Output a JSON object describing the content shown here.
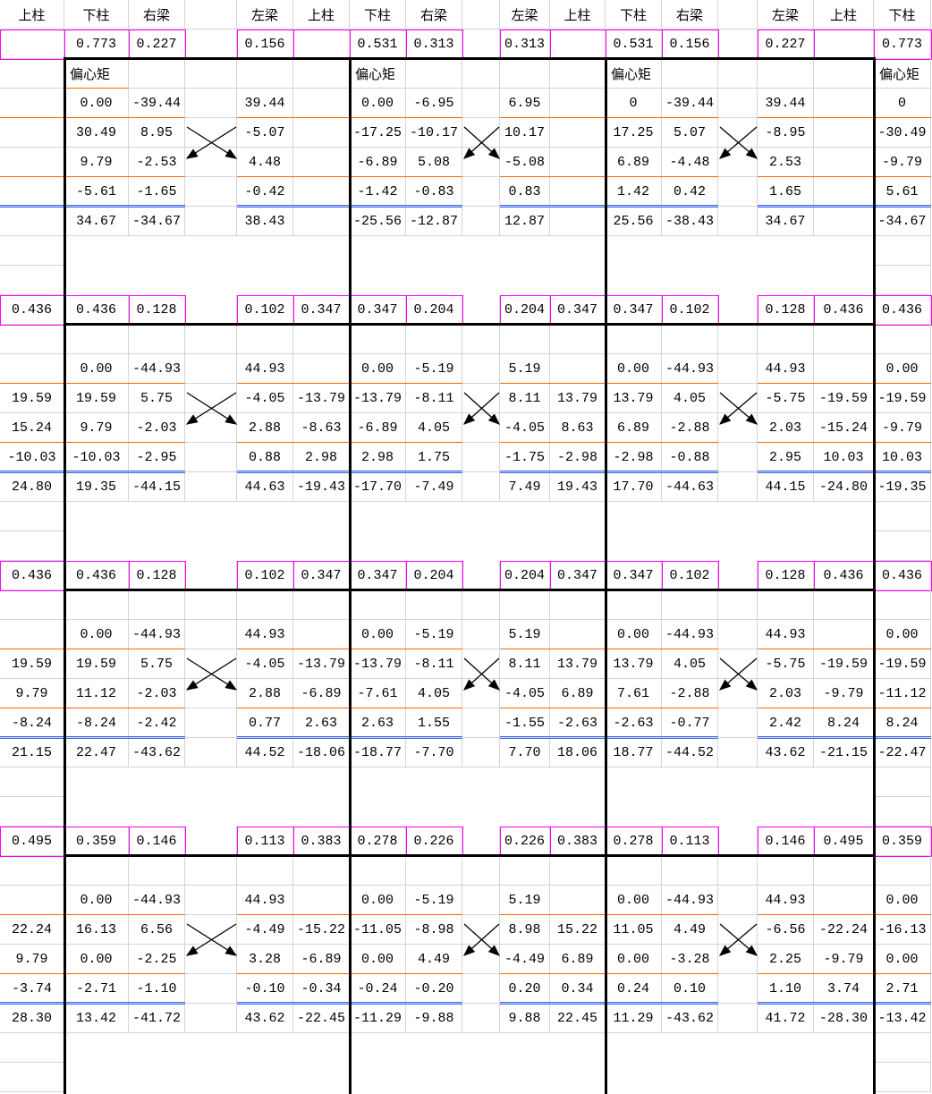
{
  "sheet": {
    "label_eccentric": "偏心矩",
    "colors": {
      "ratio_border": "#ff00ff",
      "separator": "#ff6600",
      "sum_line": "#3366ff",
      "frame": "#000000"
    },
    "rows": [
      [
        "上柱",
        "下柱",
        "右梁",
        "",
        "左梁",
        "上柱",
        "下柱",
        "右梁",
        "",
        "左梁",
        "上柱",
        "下柱",
        "右梁",
        "",
        "左梁",
        "上柱",
        "下柱"
      ],
      [
        "",
        "0.773",
        "0.227",
        "",
        "0.156",
        "",
        "0.531",
        "0.313",
        "",
        "0.313",
        "",
        "0.531",
        "0.156",
        "",
        "0.227",
        "",
        "0.773"
      ],
      [
        "",
        "偏心矩",
        "",
        "",
        "",
        "",
        "偏心矩",
        "",
        "",
        "",
        "",
        "偏心矩",
        "",
        "",
        "",
        "",
        "偏心矩"
      ],
      [
        "",
        "0.00",
        "-39.44",
        "",
        "39.44",
        "",
        "0.00",
        "-6.95",
        "",
        "6.95",
        "",
        "0",
        "-39.44",
        "",
        "39.44",
        "",
        "0"
      ],
      [
        "",
        "30.49",
        "8.95",
        "",
        "-5.07",
        "",
        "-17.25",
        "-10.17",
        "",
        "10.17",
        "",
        "17.25",
        "5.07",
        "",
        "-8.95",
        "",
        "-30.49"
      ],
      [
        "",
        "9.79",
        "-2.53",
        "",
        "4.48",
        "",
        "-6.89",
        "5.08",
        "",
        "-5.08",
        "",
        "6.89",
        "-4.48",
        "",
        "2.53",
        "",
        "-9.79"
      ],
      [
        "",
        "-5.61",
        "-1.65",
        "",
        "-0.42",
        "",
        "-1.42",
        "-0.83",
        "",
        "0.83",
        "",
        "1.42",
        "0.42",
        "",
        "1.65",
        "",
        "5.61"
      ],
      [
        "",
        "34.67",
        "-34.67",
        "",
        "38.43",
        "",
        "-25.56",
        "-12.87",
        "",
        "12.87",
        "",
        "25.56",
        "-38.43",
        "",
        "34.67",
        "",
        "-34.67"
      ],
      [],
      [],
      [
        "0.436",
        "0.436",
        "0.128",
        "",
        "0.102",
        "0.347",
        "0.347",
        "0.204",
        "",
        "0.204",
        "0.347",
        "0.347",
        "0.102",
        "",
        "0.128",
        "0.436",
        "0.436"
      ],
      [],
      [
        "",
        "0.00",
        "-44.93",
        "",
        "44.93",
        "",
        "0.00",
        "-5.19",
        "",
        "5.19",
        "",
        "0.00",
        "-44.93",
        "",
        "44.93",
        "",
        "0.00"
      ],
      [
        "19.59",
        "19.59",
        "5.75",
        "",
        "-4.05",
        "-13.79",
        "-13.79",
        "-8.11",
        "",
        "8.11",
        "13.79",
        "13.79",
        "4.05",
        "",
        "-5.75",
        "-19.59",
        "-19.59"
      ],
      [
        "15.24",
        "9.79",
        "-2.03",
        "",
        "2.88",
        "-8.63",
        "-6.89",
        "4.05",
        "",
        "-4.05",
        "8.63",
        "6.89",
        "-2.88",
        "",
        "2.03",
        "-15.24",
        "-9.79"
      ],
      [
        "-10.03",
        "-10.03",
        "-2.95",
        "",
        "0.88",
        "2.98",
        "2.98",
        "1.75",
        "",
        "-1.75",
        "-2.98",
        "-2.98",
        "-0.88",
        "",
        "2.95",
        "10.03",
        "10.03"
      ],
      [
        "24.80",
        "19.35",
        "-44.15",
        "",
        "44.63",
        "-19.43",
        "-17.70",
        "-7.49",
        "",
        "7.49",
        "19.43",
        "17.70",
        "-44.63",
        "",
        "44.15",
        "-24.80",
        "-19.35"
      ],
      [],
      [],
      [
        "0.436",
        "0.436",
        "0.128",
        "",
        "0.102",
        "0.347",
        "0.347",
        "0.204",
        "",
        "0.204",
        "0.347",
        "0.347",
        "0.102",
        "",
        "0.128",
        "0.436",
        "0.436"
      ],
      [],
      [
        "",
        "0.00",
        "-44.93",
        "",
        "44.93",
        "",
        "0.00",
        "-5.19",
        "",
        "5.19",
        "",
        "0.00",
        "-44.93",
        "",
        "44.93",
        "",
        "0.00"
      ],
      [
        "19.59",
        "19.59",
        "5.75",
        "",
        "-4.05",
        "-13.79",
        "-13.79",
        "-8.11",
        "",
        "8.11",
        "13.79",
        "13.79",
        "4.05",
        "",
        "-5.75",
        "-19.59",
        "-19.59"
      ],
      [
        "9.79",
        "11.12",
        "-2.03",
        "",
        "2.88",
        "-6.89",
        "-7.61",
        "4.05",
        "",
        "-4.05",
        "6.89",
        "7.61",
        "-2.88",
        "",
        "2.03",
        "-9.79",
        "-11.12"
      ],
      [
        "-8.24",
        "-8.24",
        "-2.42",
        "",
        "0.77",
        "2.63",
        "2.63",
        "1.55",
        "",
        "-1.55",
        "-2.63",
        "-2.63",
        "-0.77",
        "",
        "2.42",
        "8.24",
        "8.24"
      ],
      [
        "21.15",
        "22.47",
        "-43.62",
        "",
        "44.52",
        "-18.06",
        "-18.77",
        "-7.70",
        "",
        "7.70",
        "18.06",
        "18.77",
        "-44.52",
        "",
        "43.62",
        "-21.15",
        "-22.47"
      ],
      [],
      [],
      [
        "0.495",
        "0.359",
        "0.146",
        "",
        "0.113",
        "0.383",
        "0.278",
        "0.226",
        "",
        "0.226",
        "0.383",
        "0.278",
        "0.113",
        "",
        "0.146",
        "0.495",
        "0.359"
      ],
      [],
      [
        "",
        "0.00",
        "-44.93",
        "",
        "44.93",
        "",
        "0.00",
        "-5.19",
        "",
        "5.19",
        "",
        "0.00",
        "-44.93",
        "",
        "44.93",
        "",
        "0.00"
      ],
      [
        "22.24",
        "16.13",
        "6.56",
        "",
        "-4.49",
        "-15.22",
        "-11.05",
        "-8.98",
        "",
        "8.98",
        "15.22",
        "11.05",
        "4.49",
        "",
        "-6.56",
        "-22.24",
        "-16.13"
      ],
      [
        "9.79",
        "0.00",
        "-2.25",
        "",
        "3.28",
        "-6.89",
        "0.00",
        "4.49",
        "",
        "-4.49",
        "6.89",
        "0.00",
        "-3.28",
        "",
        "2.25",
        "-9.79",
        "0.00"
      ],
      [
        "-3.74",
        "-2.71",
        "-1.10",
        "",
        "-0.10",
        "-0.34",
        "-0.24",
        "-0.20",
        "",
        "0.20",
        "0.34",
        "0.24",
        "0.10",
        "",
        "1.10",
        "3.74",
        "2.71"
      ],
      [
        "28.30",
        "13.42",
        "-41.72",
        "",
        "43.62",
        "-22.45",
        "-11.29",
        "-9.88",
        "",
        "9.88",
        "22.45",
        "11.29",
        "-43.62",
        "",
        "41.72",
        "-28.30",
        "-13.42"
      ],
      [],
      []
    ]
  }
}
